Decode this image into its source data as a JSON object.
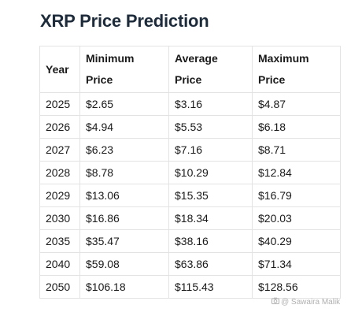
{
  "title": "XRP Price Prediction",
  "table": {
    "headers": {
      "year": "Year",
      "min_line1": "Minimum",
      "min_line2": "Price",
      "avg_line1": "Average",
      "avg_line2": "Price",
      "max_line1": "Maximum",
      "max_line2": "Price"
    },
    "rows": [
      [
        "2025",
        "$2.65",
        "$3.16",
        "$4.87"
      ],
      [
        "2026",
        "$4.94",
        "$5.53",
        "$6.18"
      ],
      [
        "2027",
        "$6.23",
        "$7.16",
        "$8.71"
      ],
      [
        "2028",
        "$8.78",
        "$10.29",
        "$12.84"
      ],
      [
        "2029",
        "$13.06",
        "$15.35",
        "$16.79"
      ],
      [
        "2030",
        "$16.86",
        "$18.34",
        "$20.03"
      ],
      [
        "2035",
        "$35.47",
        "$38.16",
        "$40.29"
      ],
      [
        "2040",
        "$59.08",
        "$63.86",
        "$71.34"
      ],
      [
        "2050",
        "$106.18",
        "$115.43",
        "$128.56"
      ]
    ]
  },
  "watermark": {
    "icon": "camera-icon",
    "text": "@ Sawaira Malik"
  }
}
